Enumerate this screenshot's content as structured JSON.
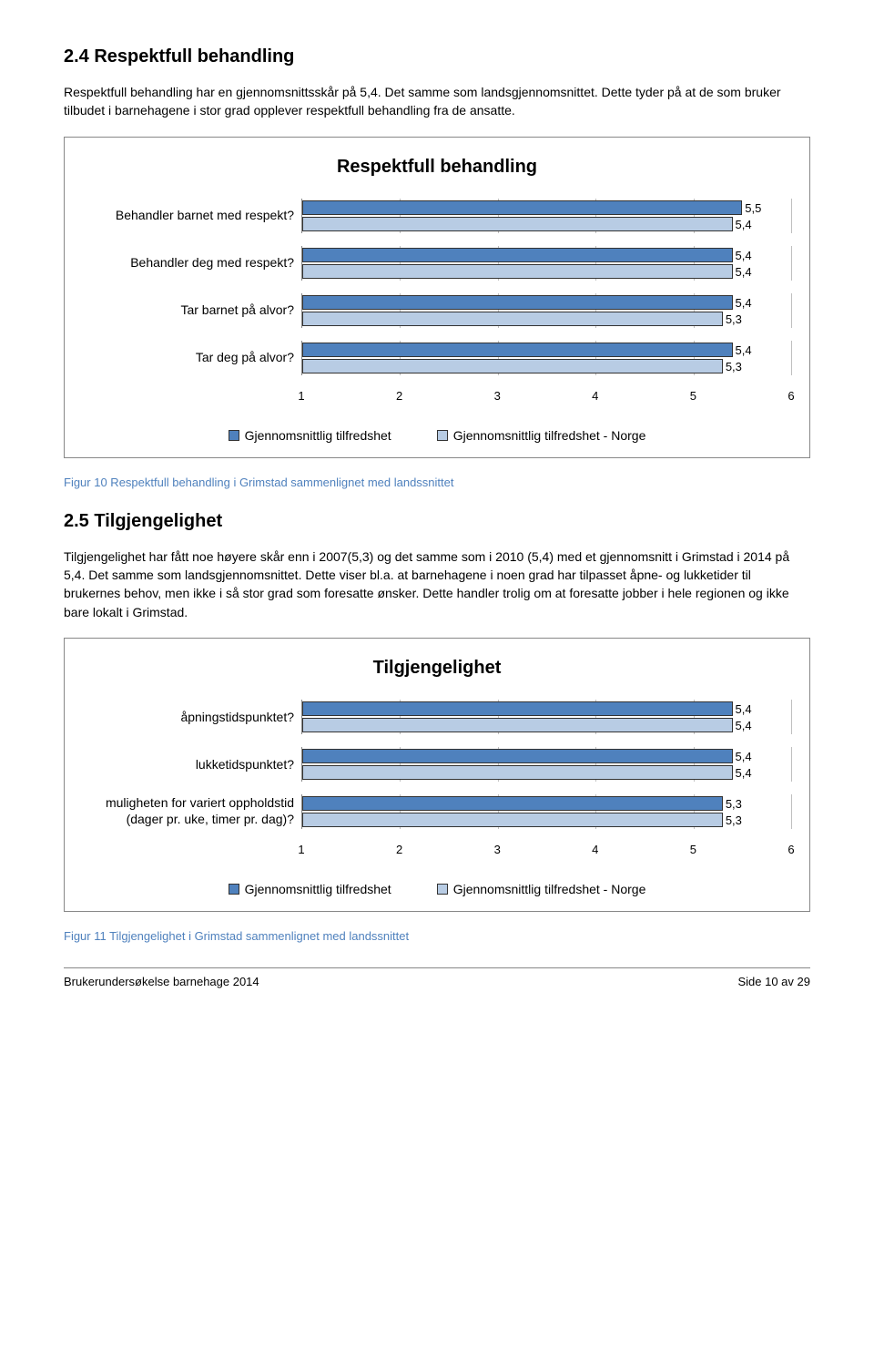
{
  "colors": {
    "series_primary": "#4f81bd",
    "series_secondary": "#b8cce4",
    "grid": "#bfbfbf",
    "caption": "#4f81bd"
  },
  "section1": {
    "heading": "2.4 Respektfull behandling",
    "intro": "Respektfull behandling har en gjennomsnittsskår på 5,4. Det samme som landsgjennomsnittet. Dette tyder på at de som bruker tilbudet i barnehagene i stor grad opplever respektfull behandling fra de ansatte."
  },
  "chart1": {
    "title": "Respektfull behandling",
    "x_min": 1,
    "x_max": 6,
    "x_ticks": [
      1,
      2,
      3,
      4,
      5,
      6
    ],
    "categories": [
      {
        "label": "Behandler barnet med respekt?",
        "v1": 5.5,
        "v2": 5.4,
        "t1": "5,5",
        "t2": "5,4"
      },
      {
        "label": "Behandler deg med respekt?",
        "v1": 5.4,
        "v2": 5.4,
        "t1": "5,4",
        "t2": "5,4"
      },
      {
        "label": "Tar barnet på alvor?",
        "v1": 5.4,
        "v2": 5.3,
        "t1": "5,4",
        "t2": "5,3"
      },
      {
        "label": "Tar deg på alvor?",
        "v1": 5.4,
        "v2": 5.3,
        "t1": "5,4",
        "t2": "5,3"
      }
    ],
    "legend": [
      "Gjennomsnittlig tilfredshet",
      "Gjennomsnittlig tilfredshet - Norge"
    ]
  },
  "figure1_caption": "Figur 10 Respektfull behandling i Grimstad sammenlignet med landssnittet",
  "section2": {
    "heading": "2.5 Tilgjengelighet",
    "intro": "Tilgjengelighet har fått noe høyere skår enn i 2007(5,3) og det samme som i 2010 (5,4) med et gjennomsnitt i Grimstad i 2014 på 5,4. Det samme som landsgjennomsnittet. Dette viser bl.a. at barnehagene i noen grad har tilpasset åpne- og lukketider til brukernes behov, men ikke i så stor grad som foresatte ønsker. Dette handler trolig om at foresatte jobber i hele regionen og ikke bare lokalt i Grimstad."
  },
  "chart2": {
    "title": "Tilgjengelighet",
    "x_min": 1,
    "x_max": 6,
    "x_ticks": [
      1,
      2,
      3,
      4,
      5,
      6
    ],
    "categories": [
      {
        "label": "åpningstidspunktet?",
        "v1": 5.4,
        "v2": 5.4,
        "t1": "5,4",
        "t2": "5,4"
      },
      {
        "label": "lukketidspunktet?",
        "v1": 5.4,
        "v2": 5.4,
        "t1": "5,4",
        "t2": "5,4"
      },
      {
        "label": "muligheten for variert oppholdstid (dager pr. uke, timer pr. dag)?",
        "v1": 5.3,
        "v2": 5.3,
        "t1": "5,3",
        "t2": "5,3",
        "wrap": true
      }
    ],
    "legend": [
      "Gjennomsnittlig tilfredshet",
      "Gjennomsnittlig tilfredshet - Norge"
    ]
  },
  "figure2_caption": "Figur 11 Tilgjengelighet i Grimstad sammenlignet med landssnittet",
  "footer": {
    "left": "Brukerundersøkelse barnehage 2014",
    "right": "Side 10 av 29"
  }
}
